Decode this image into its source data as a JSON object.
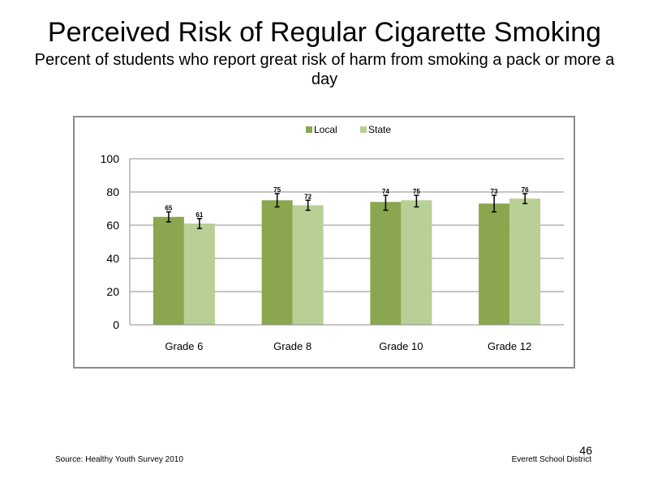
{
  "slide": {
    "title": "Perceived  Risk of Regular  Cigarette  Smoking",
    "subtitle": "Percent  of students  who report great risk of harm from smoking a pack or more a day",
    "source": "Source: Healthy Youth Survey 2010",
    "organization": "Everett School District",
    "page_number": "46"
  },
  "chart_data": {
    "type": "bar",
    "categories": [
      "Grade 6",
      "Grade 8",
      "Grade 10",
      "Grade 12"
    ],
    "series": [
      {
        "name": "Local",
        "color": "#8aa64e",
        "values": [
          65,
          75,
          74,
          73
        ],
        "error": [
          [
            62,
            68
          ],
          [
            71,
            79
          ],
          [
            69,
            78
          ],
          [
            68,
            78
          ]
        ]
      },
      {
        "name": "State",
        "color": "#b8cf95",
        "values": [
          61,
          72,
          75,
          76
        ],
        "error": [
          [
            58,
            64
          ],
          [
            69,
            75
          ],
          [
            71,
            78
          ],
          [
            73,
            79
          ]
        ]
      }
    ],
    "data_labels": [
      [
        "65",
        "75",
        "74",
        "73"
      ],
      [
        "61",
        "72",
        "75",
        "76"
      ]
    ],
    "yticks": [
      0,
      20,
      40,
      60,
      80,
      100
    ],
    "ylim": [
      0,
      100
    ],
    "grid": true,
    "legend_position": "top"
  }
}
